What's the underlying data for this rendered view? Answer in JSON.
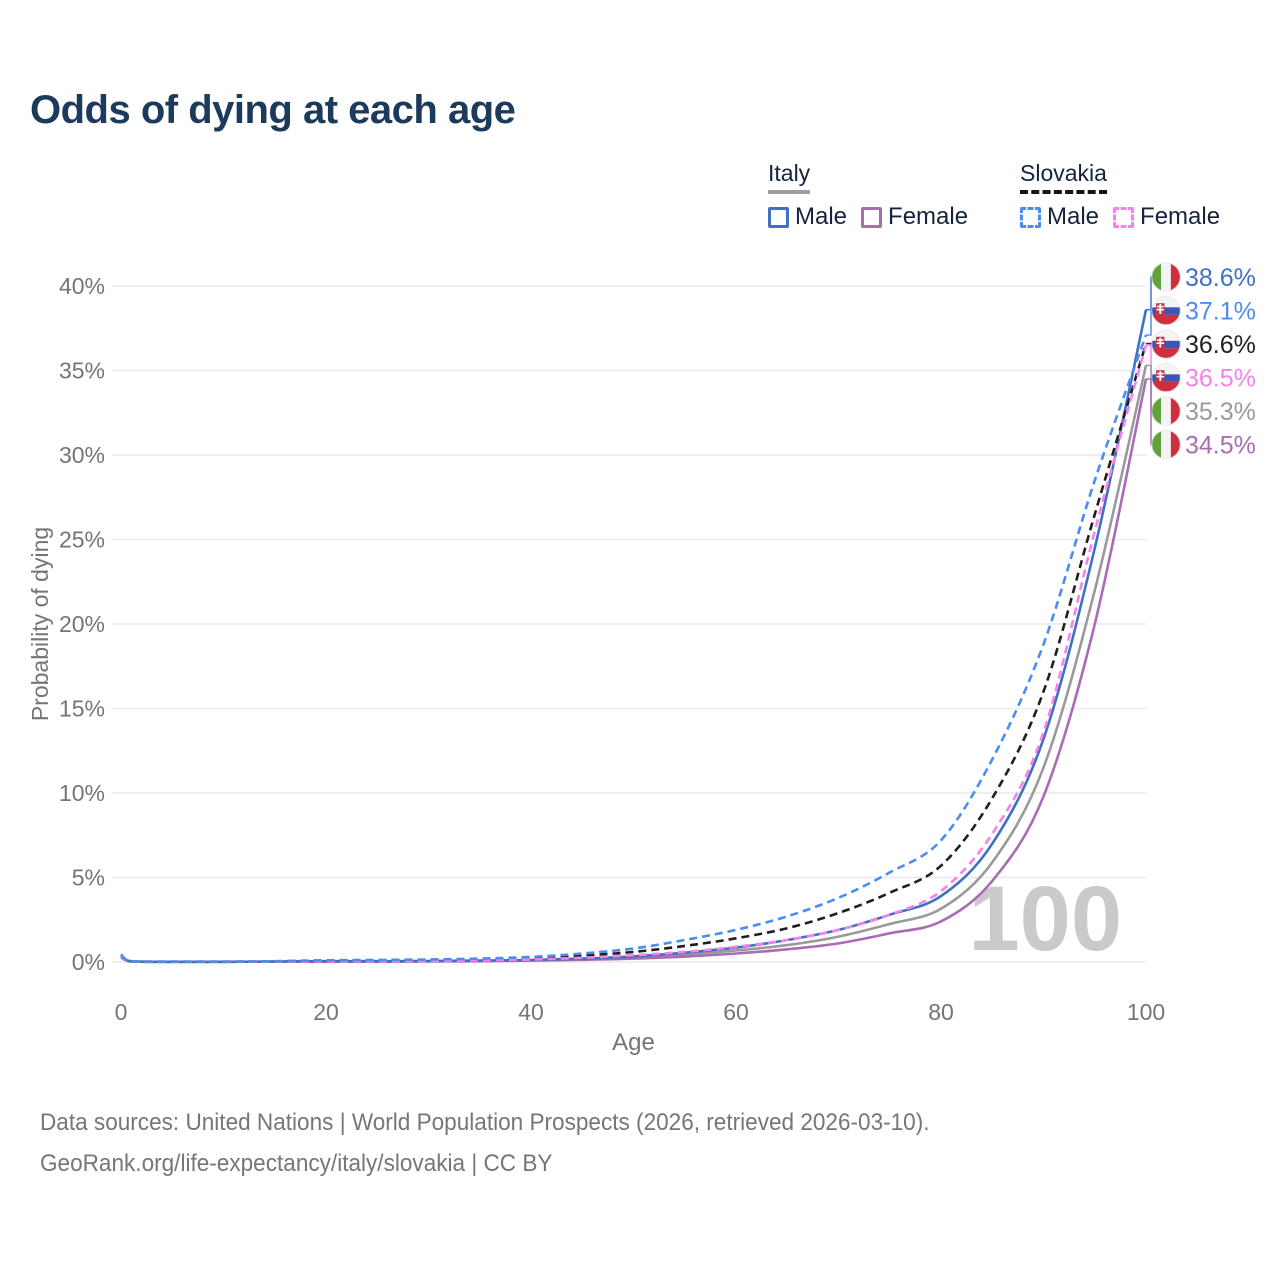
{
  "title": "Odds of dying at each age",
  "legend": {
    "groups": [
      {
        "country": "Italy",
        "line_style": "solid",
        "underline_color": "#9e9e9e",
        "items": [
          {
            "label": "Male",
            "color": "#3e72c0",
            "dashed": false
          },
          {
            "label": "Female",
            "color": "#a96cb4",
            "dashed": false
          }
        ]
      },
      {
        "country": "Slovakia",
        "line_style": "dashed",
        "underline_color": "#151515",
        "items": [
          {
            "label": "Male",
            "color": "#4a8df2",
            "dashed": true
          },
          {
            "label": "Female",
            "color": "#f980ef",
            "dashed": true
          }
        ]
      }
    ]
  },
  "chart_data": {
    "type": "line",
    "title": "Odds of dying at each age",
    "xlabel": "Age",
    "ylabel": "Probability of dying",
    "xlim": [
      0,
      100
    ],
    "ylim_percent": [
      0,
      40
    ],
    "xticks": [
      0,
      20,
      40,
      60,
      80,
      100
    ],
    "yticks_percent": [
      0,
      5,
      10,
      15,
      20,
      25,
      30,
      35,
      40
    ],
    "grid": "horizontal",
    "legend_position": "top-right",
    "watermark": "100",
    "x_ages": [
      0,
      1,
      5,
      10,
      15,
      20,
      25,
      30,
      35,
      40,
      45,
      50,
      55,
      60,
      65,
      70,
      75,
      80,
      85,
      90,
      95,
      100
    ],
    "series": [
      {
        "id": "italy-both",
        "name": "Italy Both sexes",
        "country": "italy",
        "color": "#9a9a9a",
        "dashed": false,
        "values_percent": [
          0.33,
          0.04,
          0.01,
          0.01,
          0.02,
          0.04,
          0.04,
          0.05,
          0.07,
          0.1,
          0.17,
          0.27,
          0.44,
          0.68,
          1.0,
          1.5,
          2.25,
          3.15,
          5.9,
          11.5,
          22.0,
          35.3
        ]
      },
      {
        "id": "italy-female",
        "name": "Italy Female",
        "country": "italy",
        "color": "#a96cb4",
        "dashed": false,
        "values_percent": [
          0.3,
          0.03,
          0.01,
          0.01,
          0.02,
          0.02,
          0.02,
          0.03,
          0.05,
          0.08,
          0.13,
          0.2,
          0.32,
          0.5,
          0.75,
          1.1,
          1.7,
          2.4,
          4.8,
          9.8,
          20.0,
          34.5
        ]
      },
      {
        "id": "italy-male",
        "name": "Italy Male",
        "country": "italy",
        "color": "#3e72c0",
        "dashed": false,
        "values_percent": [
          0.35,
          0.04,
          0.01,
          0.01,
          0.03,
          0.05,
          0.05,
          0.06,
          0.08,
          0.12,
          0.2,
          0.33,
          0.55,
          0.85,
          1.3,
          1.9,
          2.8,
          3.9,
          7.0,
          13.2,
          24.5,
          38.6
        ]
      },
      {
        "id": "slovakia-both",
        "name": "Slovakia Both sexes",
        "country": "slovakia",
        "color": "#1f1f1f",
        "dashed": true,
        "values_percent": [
          0.43,
          0.05,
          0.02,
          0.02,
          0.04,
          0.07,
          0.09,
          0.11,
          0.15,
          0.22,
          0.38,
          0.6,
          0.95,
          1.4,
          2.0,
          2.9,
          4.1,
          5.7,
          9.7,
          16.0,
          26.5,
          36.6
        ]
      },
      {
        "id": "slovakia-female",
        "name": "Slovakia Female",
        "country": "slovakia",
        "color": "#f980ef",
        "dashed": true,
        "values_percent": [
          0.4,
          0.04,
          0.02,
          0.02,
          0.03,
          0.04,
          0.05,
          0.06,
          0.1,
          0.15,
          0.25,
          0.4,
          0.6,
          0.9,
          1.3,
          1.9,
          2.8,
          4.2,
          7.6,
          13.6,
          25.5,
          36.5
        ]
      },
      {
        "id": "slovakia-male",
        "name": "Slovakia Male",
        "country": "slovakia",
        "color": "#4a8df2",
        "dashed": true,
        "values_percent": [
          0.45,
          0.05,
          0.02,
          0.02,
          0.05,
          0.1,
          0.12,
          0.15,
          0.2,
          0.3,
          0.5,
          0.8,
          1.3,
          1.9,
          2.7,
          3.8,
          5.3,
          7.2,
          12.0,
          18.8,
          28.5,
          37.1
        ]
      }
    ],
    "end_labels": [
      {
        "series": "italy-male",
        "text": "38.6%",
        "flag": "italy"
      },
      {
        "series": "slovakia-male",
        "text": "37.1%",
        "flag": "slovakia"
      },
      {
        "series": "slovakia-both",
        "text": "36.6%",
        "flag": "slovakia",
        "text_color": "#222222"
      },
      {
        "series": "slovakia-female",
        "text": "36.5%",
        "flag": "slovakia"
      },
      {
        "series": "italy-both",
        "text": "35.3%",
        "flag": "italy"
      },
      {
        "series": "italy-female",
        "text": "34.5%",
        "flag": "italy"
      }
    ],
    "flag_colors": {
      "italy_green": "#61a23c",
      "italy_white": "#f4f4f4",
      "italy_red": "#cf2e3c",
      "slovakia_white": "#f4f4f4",
      "slovakia_blue": "#3c55b4",
      "slovakia_red": "#cf2e3c"
    }
  },
  "footer": {
    "line1": "Data sources: United Nations | World Population Prospects (2026, retrieved 2026-03-10).",
    "line2": "GeoRank.org/life-expectancy/italy/slovakia | CC BY"
  }
}
